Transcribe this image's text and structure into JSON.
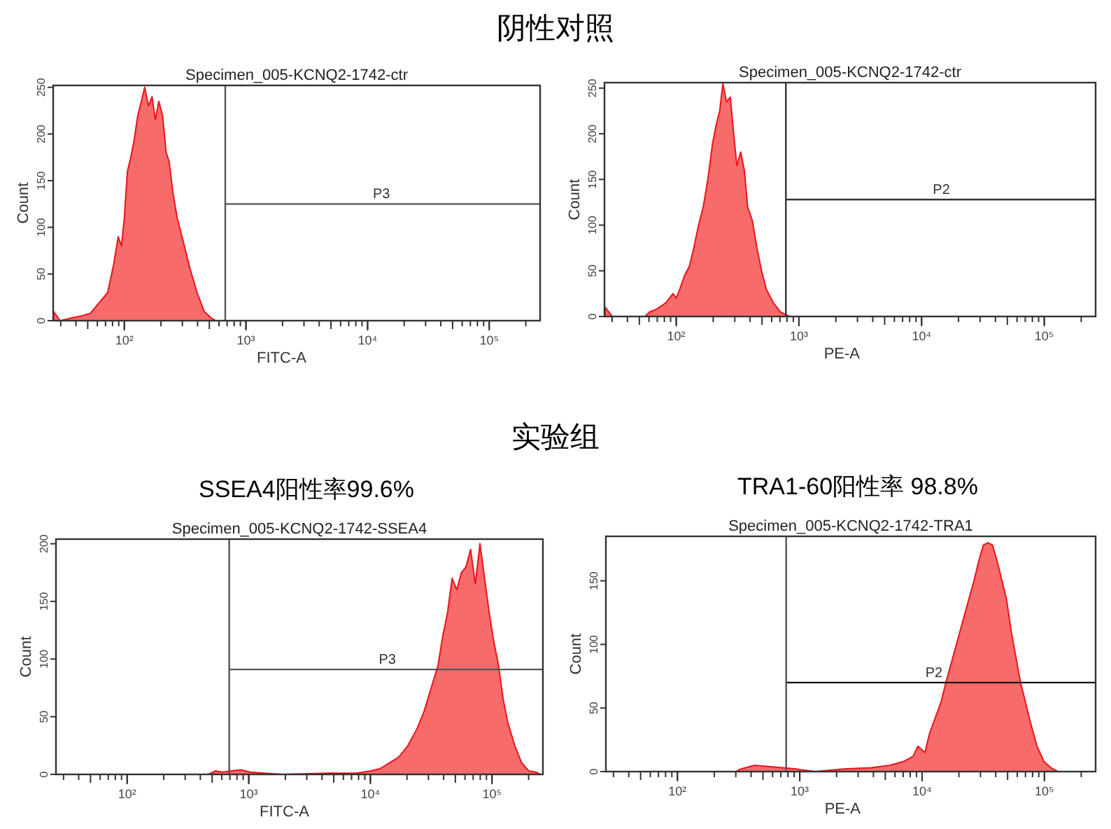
{
  "chart_data": [
    {
      "type": "other",
      "title": "阴性对照"
    },
    {
      "type": "area",
      "title": "Specimen_005-KCNQ2-1742-ctr",
      "xlabel": "FITC-A",
      "ylabel": "Count",
      "log": "x",
      "xlim": [
        26,
        262144
      ],
      "ylim": [
        0,
        252
      ],
      "xticks": [
        {
          "value": 100,
          "label": "10²"
        },
        {
          "value": 1000,
          "label": "10³"
        },
        {
          "value": 10000,
          "label": "10⁴"
        },
        {
          "value": 100000,
          "label": "10⁵"
        }
      ],
      "yticks": [
        0,
        50,
        100,
        150,
        200,
        250
      ],
      "series": [
        {
          "type": "area",
          "color": "#f76b6b",
          "x": [
            26.1,
            29.7,
            37.1,
            44.2,
            52.6,
            62.8,
            72.9,
            81.7,
            89.1,
            94.8,
            100,
            106,
            113,
            121,
            129,
            138,
            147,
            158,
            169,
            180,
            192,
            206,
            221,
            234,
            249,
            272,
            305,
            348,
            397,
            453,
            517,
            565
          ],
          "values": [
            10,
            0,
            3,
            5,
            8,
            20,
            30,
            60,
            90,
            80,
            110,
            160,
            175,
            195,
            220,
            235,
            250,
            230,
            240,
            215,
            235,
            220,
            180,
            170,
            140,
            110,
            85,
            55,
            30,
            10,
            3,
            0
          ]
        },
        {
          "type": "line",
          "color": "#555555",
          "x": [
            676,
            262144
          ],
          "values": [
            125,
            125
          ]
        }
      ],
      "ref_lines": [
        {
          "axis": "x",
          "value": 676,
          "color": "#555555"
        }
      ],
      "annotations": [
        {
          "text": "P3",
          "x": 13000,
          "y": 125
        }
      ]
    },
    {
      "type": "area",
      "title": "Specimen_005-KCNQ2-1742-ctr",
      "xlabel": "PE-A",
      "ylabel": "Count",
      "log": "x",
      "xlim": [
        26,
        262144
      ],
      "ylim": [
        0,
        256
      ],
      "xticks": [
        {
          "value": 100,
          "label": "10²"
        },
        {
          "value": 1000,
          "label": "10³"
        },
        {
          "value": 10000,
          "label": "10⁴"
        },
        {
          "value": 100000,
          "label": "10⁵"
        }
      ],
      "yticks": [
        0,
        50,
        100,
        150,
        200,
        250
      ],
      "series": [
        {
          "type": "area",
          "color": "#f76b6b",
          "x": [
            26.4,
            30.1,
            55.6,
            60.7,
            69.2,
            82.4,
            94.1,
            100,
            107,
            117,
            128,
            139,
            152,
            166,
            181,
            198,
            212,
            226,
            240,
            257,
            276,
            294,
            312,
            335,
            359,
            382,
            417,
            455,
            496,
            542,
            618,
            705,
            783,
            839
          ],
          "values": [
            10,
            0,
            0,
            5,
            8,
            15,
            25,
            20,
            30,
            45,
            55,
            75,
            100,
            120,
            150,
            190,
            210,
            225,
            255,
            235,
            240,
            200,
            165,
            180,
            160,
            120,
            105,
            75,
            50,
            30,
            15,
            5,
            2,
            0
          ]
        },
        {
          "type": "line",
          "color": "#333333",
          "x": [
            783,
            262144
          ],
          "values": [
            128,
            128
          ]
        }
      ],
      "ref_lines": [
        {
          "axis": "x",
          "value": 783,
          "color": "#333333"
        }
      ],
      "annotations": [
        {
          "text": "P2",
          "x": 14500,
          "y": 128
        }
      ]
    },
    {
      "type": "other",
      "title": "实验组"
    },
    {
      "type": "area",
      "title": "Specimen_005-KCNQ2-1742-SSEA4",
      "xlabel": "FITC-A",
      "ylabel": "Count",
      "log": "x",
      "xlim": [
        26,
        262144
      ],
      "ylim": [
        0,
        204
      ],
      "xticks": [
        {
          "value": 100,
          "label": "10²"
        },
        {
          "value": 1000,
          "label": "10³"
        },
        {
          "value": 10000,
          "label": "10⁴"
        },
        {
          "value": 100000,
          "label": "10⁵"
        }
      ],
      "yticks": [
        0,
        50,
        100,
        150,
        200
      ],
      "series": [
        {
          "type": "area",
          "color": "#f76b6b",
          "x": [
            466,
            531,
            606,
            722,
            861,
            1026,
            1336,
            1899,
            4571,
            7745,
            10090,
            12020,
            14320,
            17100,
            20370,
            24270,
            27730,
            31620,
            36070,
            39360,
            43050,
            46990,
            51290,
            55980,
            61090,
            66680,
            72950,
            79620,
            86900,
            94840,
            103500,
            113000,
            123600,
            134900,
            153800,
            175400,
            200400,
            228600,
            249500
          ],
          "values": [
            0,
            3,
            2,
            3,
            4,
            2,
            1,
            0,
            1,
            1,
            3,
            5,
            10,
            15,
            25,
            40,
            55,
            75,
            95,
            120,
            140,
            170,
            160,
            175,
            180,
            195,
            165,
            200,
            170,
            140,
            115,
            95,
            65,
            45,
            25,
            10,
            3,
            2,
            0
          ]
        },
        {
          "type": "line",
          "color": "#555555",
          "x": [
            691,
            262144
          ],
          "values": [
            91,
            91
          ]
        }
      ],
      "ref_lines": [
        {
          "axis": "x",
          "value": 691,
          "color": "#555555"
        }
      ],
      "annotations": [
        "SSEA4阳性率99.6%",
        {
          "text": "P3",
          "x": 13800,
          "y": 91
        }
      ]
    },
    {
      "type": "area",
      "title": "Specimen_005-KCNQ2-1742-TRA1",
      "xlabel": "PE-A",
      "ylabel": "Count",
      "log": "x",
      "xlim": [
        26,
        262144
      ],
      "ylim": [
        0,
        185
      ],
      "xticks": [
        {
          "value": 100,
          "label": "10²"
        },
        {
          "value": 1000,
          "label": "10³"
        },
        {
          "value": 10000,
          "label": "10⁴"
        },
        {
          "value": 100000,
          "label": "10⁵"
        }
      ],
      "yticks": [
        0,
        50,
        100,
        150
      ],
      "series": [
        {
          "type": "area",
          "color": "#f76b6b",
          "x": [
            300,
            327,
            426,
            555,
            722,
            940,
            1336,
            2265,
            3837,
            5458,
            7101,
            8453,
            9247,
            10540,
            11510,
            12560,
            14320,
            15660,
            17860,
            20370,
            23230,
            26550,
            28970,
            31620,
            34510,
            37670,
            41210,
            44980,
            49090,
            53580,
            58480,
            63830,
            69820,
            76210,
            86900,
            99080,
            113000,
            129100
          ],
          "values": [
            0,
            2,
            5,
            4,
            3,
            2,
            0,
            2,
            3,
            5,
            8,
            12,
            20,
            15,
            30,
            40,
            55,
            70,
            90,
            110,
            130,
            150,
            165,
            178,
            180,
            178,
            165,
            150,
            135,
            110,
            90,
            70,
            55,
            40,
            20,
            8,
            3,
            0
          ]
        },
        {
          "type": "line",
          "color": "#111111",
          "x": [
            774,
            262144
          ],
          "values": [
            70,
            70
          ]
        }
      ],
      "ref_lines": [
        {
          "axis": "x",
          "value": 774,
          "color": "#555555"
        }
      ],
      "annotations": [
        "TRA1-60阳性率 98.8%",
        {
          "text": "P2",
          "x": 12500,
          "y": 70
        }
      ]
    }
  ]
}
